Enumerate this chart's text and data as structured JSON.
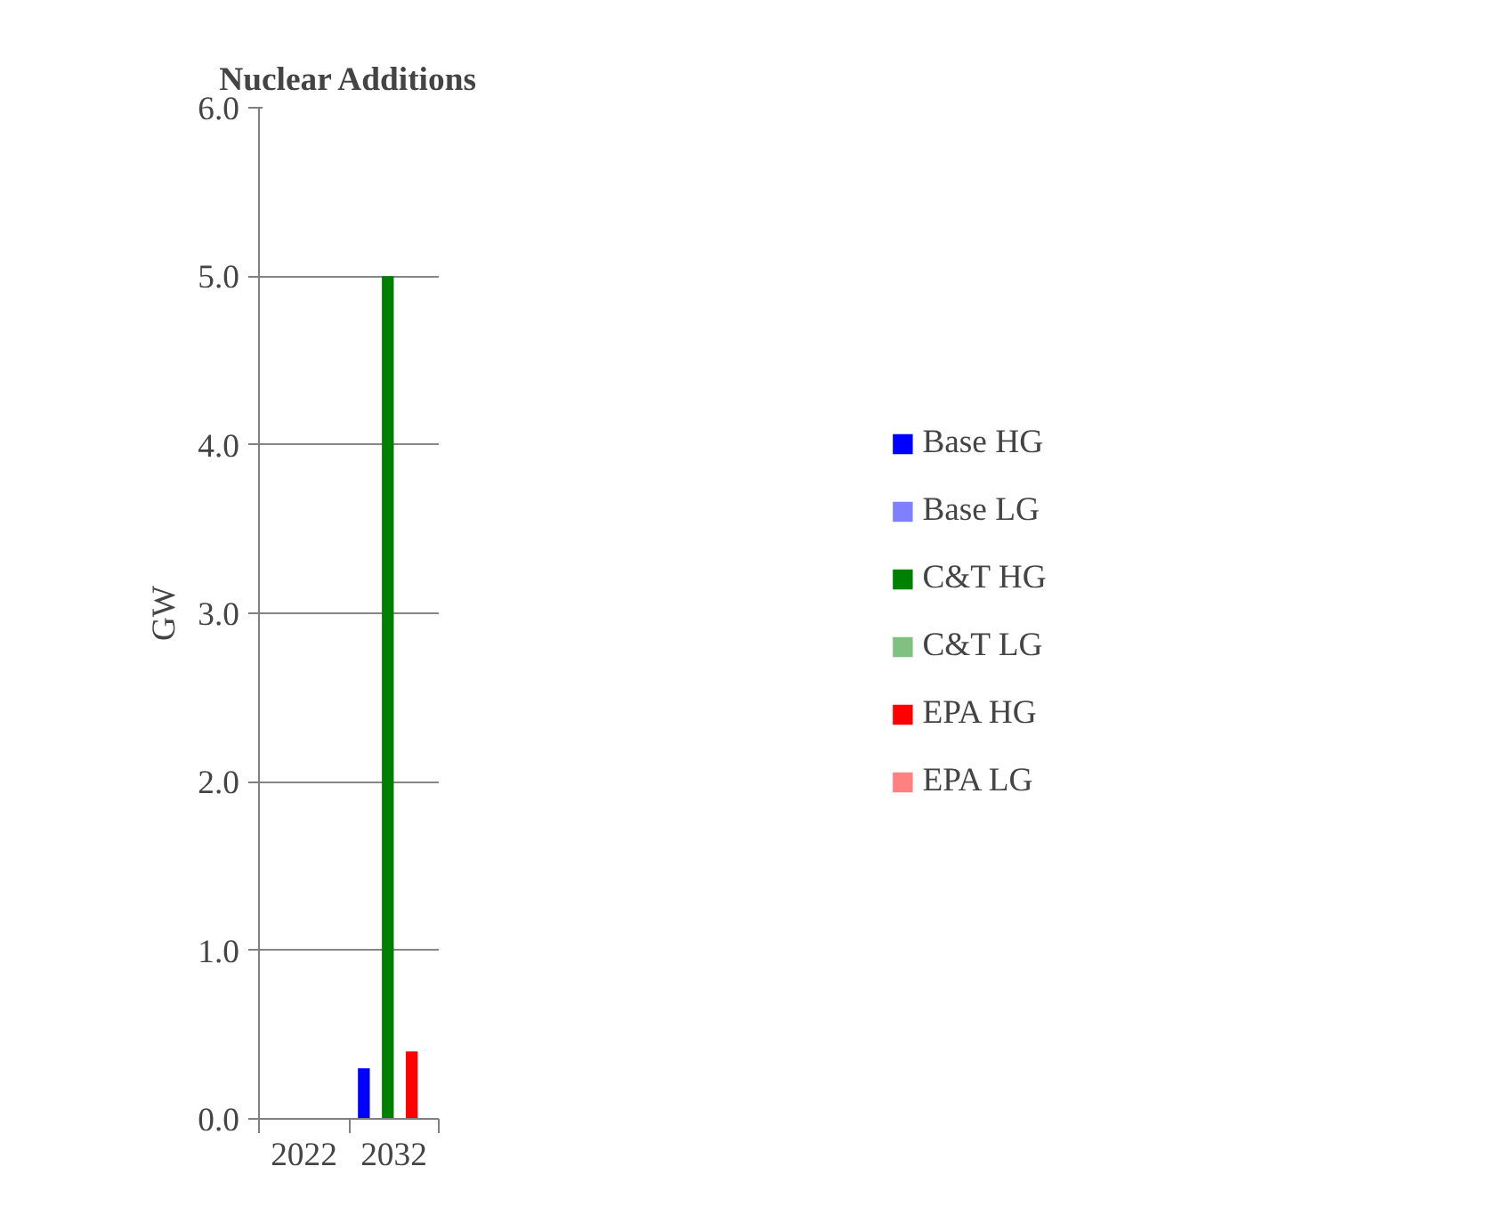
{
  "chart_data": {
    "type": "bar",
    "title": "Nuclear Additions",
    "ylabel": "GW",
    "categories": [
      "2022",
      "2032"
    ],
    "series": [
      {
        "name": "Base HG",
        "color": "#0000ff",
        "values": [
          0,
          0.3
        ]
      },
      {
        "name": "Base LG",
        "color": "#8080ff",
        "values": [
          0,
          0
        ]
      },
      {
        "name": "C&T HG",
        "color": "#008000",
        "values": [
          0,
          5.0
        ]
      },
      {
        "name": "C&T LG",
        "color": "#80c080",
        "values": [
          0,
          0
        ]
      },
      {
        "name": "EPA HG",
        "color": "#ff0000",
        "values": [
          0,
          0.4
        ]
      },
      {
        "name": "EPA LG",
        "color": "#ff8080",
        "values": [
          0,
          0
        ]
      }
    ],
    "ylim": [
      0,
      6
    ],
    "yticks": [
      {
        "value": 0,
        "label": "0.0"
      },
      {
        "value": 1,
        "label": "1.0"
      },
      {
        "value": 2,
        "label": "2.0"
      },
      {
        "value": 3,
        "label": "3.0"
      },
      {
        "value": 4,
        "label": "4.0"
      },
      {
        "value": 5,
        "label": "5.0"
      },
      {
        "value": 6,
        "label": "6.0"
      }
    ],
    "grid": "y",
    "legend": "right"
  }
}
